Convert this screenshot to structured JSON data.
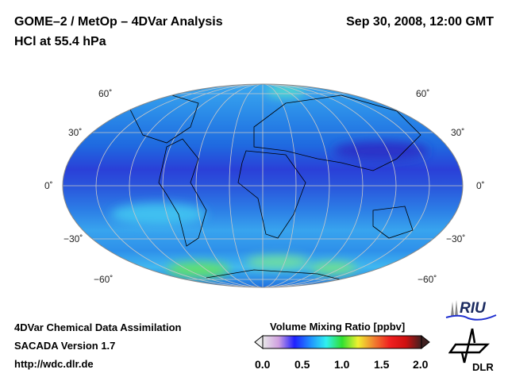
{
  "header": {
    "title_line1": "GOME–2 / MetOp – 4DVar Analysis",
    "title_line2": "HCl at 55.4 hPa",
    "datetime": "Sep 30, 2008, 12:00 GMT"
  },
  "map": {
    "projection": "Mollweide",
    "lat_labels": [
      "60˚",
      "30˚",
      "0˚",
      "−30˚",
      "−60˚"
    ]
  },
  "colorbar": {
    "title": "Volume Mixing Ratio [ppbv]",
    "ticks": [
      "0.0",
      "0.5",
      "1.0",
      "1.5",
      "2.0"
    ],
    "min": 0.0,
    "max": 2.0,
    "colors": [
      "#e8e8e8",
      "#d0a0e0",
      "#2020ff",
      "#2090ff",
      "#30f0f0",
      "#30e030",
      "#f0f030",
      "#f08030",
      "#f02020",
      "#d01010",
      "#402020"
    ]
  },
  "footer": {
    "line1": "4DVar Chemical Data Assimilation",
    "line2": "SACADA Version 1.7",
    "line3": "http://wdc.dlr.de"
  },
  "logos": {
    "riu": "RIU",
    "dlr": "DLR"
  }
}
